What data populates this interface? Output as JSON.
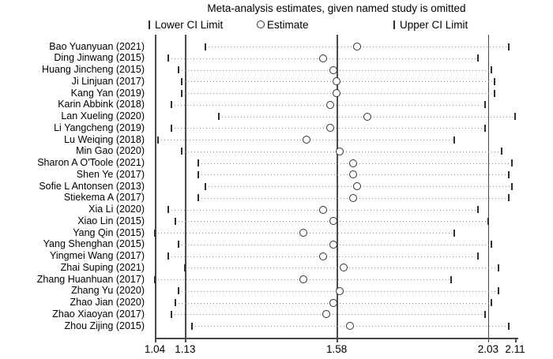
{
  "title": "Meta-analysis estimates, given named study is omitted",
  "legend": {
    "lower_label": "Lower CI Limit",
    "estimate_label": "Estimate",
    "upper_label": "Upper CI Limit"
  },
  "colors": {
    "axis": "#4a4a4a",
    "marker": "#2f2f2f",
    "dotted_line": "#8a8a8a",
    "background": "#ffffff"
  },
  "chart_data": {
    "type": "scatter",
    "subtype": "leave-one-out sensitivity (meta-analysis influence plot)",
    "title": "Meta-analysis estimates, given named study is omitted",
    "xlabel": "",
    "ylabel": "",
    "xlim": [
      1.04,
      2.11
    ],
    "x_ticks": [
      1.04,
      1.13,
      1.58,
      2.03,
      2.11
    ],
    "ref_lines": [
      1.13,
      1.58,
      2.03
    ],
    "grid": false,
    "legend_position": "top",
    "studies": [
      {
        "label": "Bao Yuanyuan (2021)",
        "lower": 1.19,
        "estimate": 1.64,
        "upper": 2.09
      },
      {
        "label": "Ding Jinwang (2015)",
        "lower": 1.08,
        "estimate": 1.54,
        "upper": 2.0
      },
      {
        "label": "Huang Jincheng (2015)",
        "lower": 1.11,
        "estimate": 1.57,
        "upper": 2.04
      },
      {
        "label": "Ji Linjuan (2017)",
        "lower": 1.12,
        "estimate": 1.58,
        "upper": 2.05
      },
      {
        "label": "Kang Yan (2019)",
        "lower": 1.12,
        "estimate": 1.58,
        "upper": 2.05
      },
      {
        "label": "Karin Abbink (2018)",
        "lower": 1.09,
        "estimate": 1.56,
        "upper": 2.02
      },
      {
        "label": "Lan Xueling (2020)",
        "lower": 1.23,
        "estimate": 1.67,
        "upper": 2.11
      },
      {
        "label": "Li Yangcheng (2019)",
        "lower": 1.09,
        "estimate": 1.56,
        "upper": 2.02
      },
      {
        "label": "Lu Weiqing (2018)",
        "lower": 1.05,
        "estimate": 1.49,
        "upper": 1.93
      },
      {
        "label": "Min Gao (2020)",
        "lower": 1.12,
        "estimate": 1.59,
        "upper": 2.07
      },
      {
        "label": "Sharon A O'Toole (2021)",
        "lower": 1.17,
        "estimate": 1.63,
        "upper": 2.1
      },
      {
        "label": "Shen Ye (2017)",
        "lower": 1.17,
        "estimate": 1.63,
        "upper": 2.09
      },
      {
        "label": "Sofie L Antonsen (2013)",
        "lower": 1.19,
        "estimate": 1.64,
        "upper": 2.1
      },
      {
        "label": "Stiekema A (2017)",
        "lower": 1.17,
        "estimate": 1.63,
        "upper": 2.09
      },
      {
        "label": "Xia Li (2020)",
        "lower": 1.08,
        "estimate": 1.54,
        "upper": 2.0
      },
      {
        "label": "Xiao Lin (2015)",
        "lower": 1.1,
        "estimate": 1.57,
        "upper": 2.03
      },
      {
        "label": "Yang Qin (2015)",
        "lower": 1.04,
        "estimate": 1.48,
        "upper": 1.93
      },
      {
        "label": "Yang Shenghan (2015)",
        "lower": 1.11,
        "estimate": 1.57,
        "upper": 2.04
      },
      {
        "label": "Yingmei Wang (2017)",
        "lower": 1.08,
        "estimate": 1.54,
        "upper": 2.0
      },
      {
        "label": "Zhai Suping (2021)",
        "lower": 1.13,
        "estimate": 1.6,
        "upper": 2.06
      },
      {
        "label": "Zhang Huanhuan (2017)",
        "lower": 1.04,
        "estimate": 1.48,
        "upper": 1.92
      },
      {
        "label": "Zhang Yu (2020)",
        "lower": 1.11,
        "estimate": 1.59,
        "upper": 2.06
      },
      {
        "label": "Zhao Jian (2020)",
        "lower": 1.1,
        "estimate": 1.57,
        "upper": 2.04
      },
      {
        "label": "Zhao Xiaoyan (2017)",
        "lower": 1.09,
        "estimate": 1.55,
        "upper": 2.02
      },
      {
        "label": "Zhou Zijing (2015)",
        "lower": 1.15,
        "estimate": 1.62,
        "upper": 2.09
      }
    ]
  }
}
